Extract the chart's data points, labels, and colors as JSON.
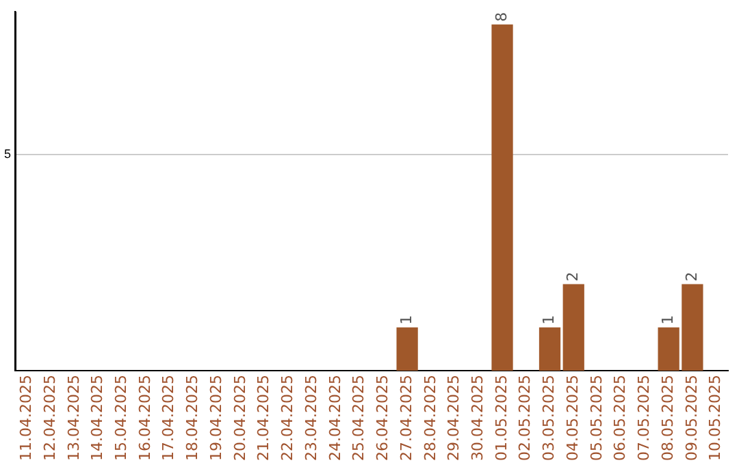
{
  "chart_data": {
    "type": "bar",
    "categories": [
      "11.04.2025",
      "12.04.2025",
      "13.04.2025",
      "14.04.2025",
      "15.04.2025",
      "16.04.2025",
      "17.04.2025",
      "18.04.2025",
      "19.04.2025",
      "20.04.2025",
      "21.04.2025",
      "22.04.2025",
      "23.04.2025",
      "24.04.2025",
      "25.04.2025",
      "26.04.2025",
      "27.04.2025",
      "28.04.2025",
      "29.04.2025",
      "30.04.2025",
      "01.05.2025",
      "02.05.2025",
      "03.05.2025",
      "04.05.2025",
      "05.05.2025",
      "06.05.2025",
      "07.05.2025",
      "08.05.2025",
      "09.05.2025",
      "10.05.2025"
    ],
    "values": [
      null,
      null,
      null,
      null,
      null,
      null,
      null,
      null,
      null,
      null,
      null,
      null,
      null,
      null,
      null,
      null,
      1,
      null,
      null,
      null,
      8,
      null,
      1,
      2,
      null,
      null,
      null,
      1,
      2,
      null
    ],
    "data_labels": true,
    "color": "#a0582a",
    "ylim": [
      0,
      8.3
    ],
    "yticks": [
      5
    ],
    "grid": "y",
    "legend": false
  }
}
